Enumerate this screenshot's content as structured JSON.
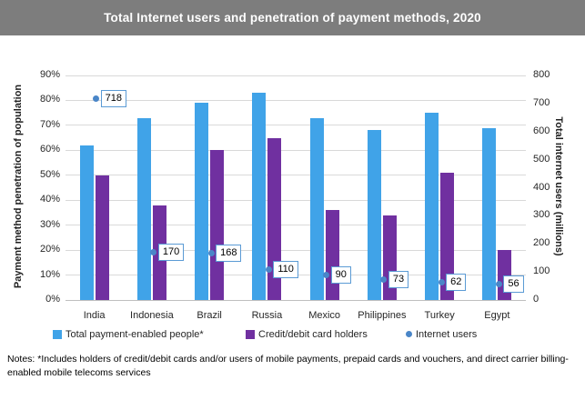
{
  "title": "Total Internet users and penetration of payment methods, 2020",
  "chart_data": {
    "type": "bar",
    "categories": [
      "India",
      "Indonesia",
      "Brazil",
      "Russia",
      "Mexico",
      "Philippines",
      "Turkey",
      "Egypt"
    ],
    "series": [
      {
        "name": "Total payment-enabled people*",
        "type": "bar",
        "axis": "left",
        "color": "#40a3e8",
        "values": [
          62,
          73,
          79,
          83,
          73,
          68,
          75,
          69
        ]
      },
      {
        "name": "Credit/debit card holders",
        "type": "bar",
        "axis": "left",
        "color": "#7030a0",
        "values": [
          50,
          38,
          60,
          65,
          36,
          34,
          51,
          20
        ]
      },
      {
        "name": "Internet users",
        "type": "scatter",
        "axis": "right",
        "color": "#4a86c8",
        "values": [
          718,
          170,
          168,
          110,
          90,
          73,
          62,
          56
        ],
        "data_labels": true,
        "label_border_color": "#5b9bd5"
      }
    ],
    "left_axis": {
      "title": "Payment method penetration of population",
      "min": 0,
      "max": 90,
      "step": 10,
      "suffix": "%"
    },
    "right_axis": {
      "title": "Total internet users (millions)",
      "min": 0,
      "max": 800,
      "step": 100
    },
    "grid": true,
    "legend_position": "bottom"
  },
  "notes": "Notes: *Includes holders of credit/debit cards and/or users of mobile payments, prepaid cards and vouchers, and direct carrier billing-enabled mobile telecoms services",
  "colors": {
    "title_bar_bg": "#7d7d7d",
    "title_text": "#ffffff",
    "gridline": "#d9d9d9",
    "axis_line": "#bfbfbf",
    "text": "#262626"
  }
}
